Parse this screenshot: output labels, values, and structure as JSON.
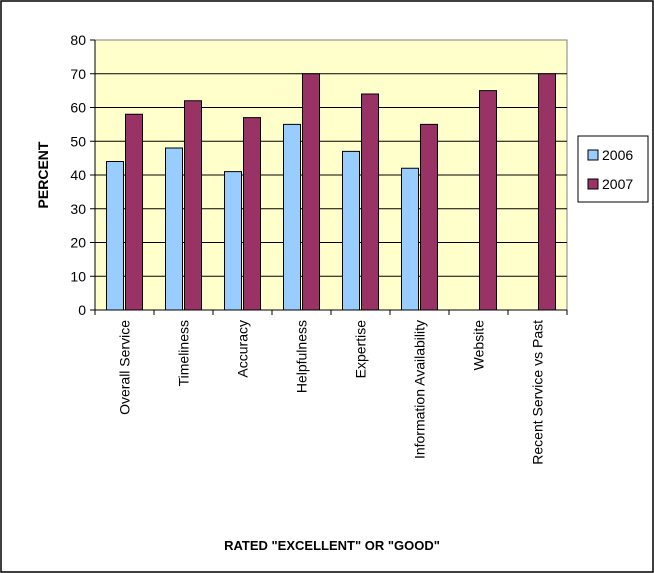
{
  "chart_data": {
    "type": "bar",
    "title": "",
    "xlabel": "RATED \"EXCELLENT\" OR \"GOOD\"",
    "ylabel": "PERCENT",
    "ylim": [
      0,
      80
    ],
    "yticks": [
      0,
      10,
      20,
      30,
      40,
      50,
      60,
      70,
      80
    ],
    "grid": true,
    "legend_position": "right",
    "categories": [
      "Overall Service",
      "Timeliness",
      "Accuracy",
      "Helpfulness",
      "Expertise",
      "Information Availability",
      "Website",
      "Recent Service vs Past"
    ],
    "series": [
      {
        "name": "2006",
        "color": "#99ccff",
        "values": [
          44,
          48,
          41,
          55,
          47,
          42,
          null,
          null
        ]
      },
      {
        "name": "2007",
        "color": "#993366",
        "values": [
          58,
          62,
          57,
          70,
          64,
          55,
          65,
          70
        ]
      }
    ],
    "plot_background": "#ffffcc"
  }
}
